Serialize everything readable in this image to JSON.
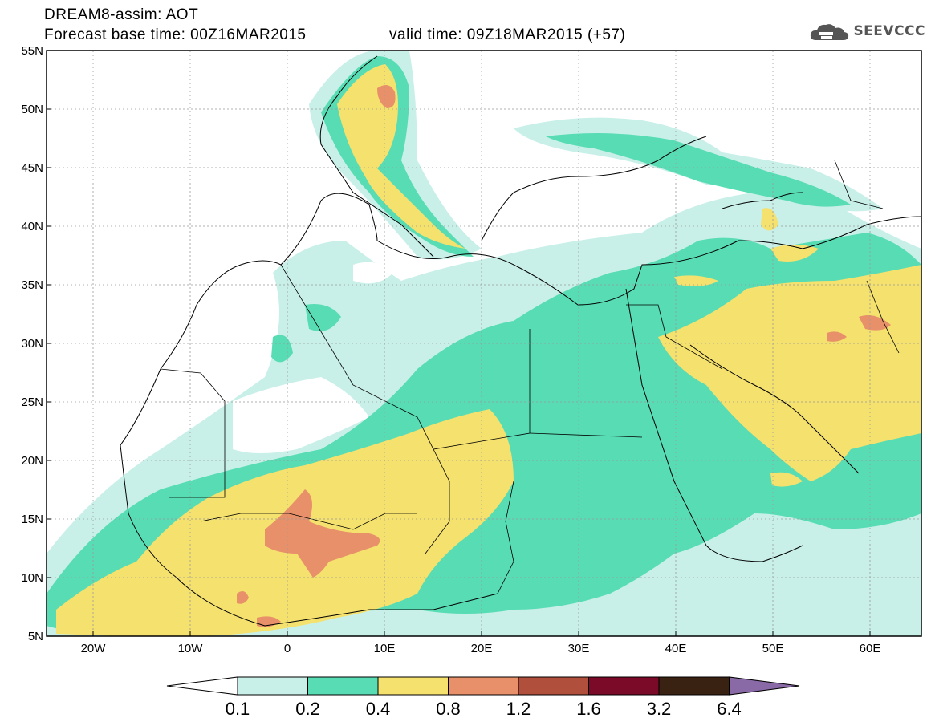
{
  "header": {
    "title_line1": "DREAM8-assim: AOT",
    "title_line2": "Forecast base time: 00Z16MAR2015",
    "valid_time": "valid time: 09Z18MAR2015 (+57)",
    "logo_text": "SEEVCCC"
  },
  "map": {
    "lat_labels": [
      "55N",
      "50N",
      "45N",
      "40N",
      "35N",
      "30N",
      "25N",
      "20N",
      "15N",
      "10N",
      "5N"
    ],
    "lon_labels": [
      "20W",
      "10W",
      "0",
      "10E",
      "20E",
      "30E",
      "40E",
      "50E",
      "60E"
    ],
    "lat_range": [
      5,
      55
    ],
    "lon_range": [
      -25,
      65
    ]
  },
  "colorbar": {
    "levels": [
      "0.1",
      "0.2",
      "0.4",
      "0.8",
      "1.2",
      "1.6",
      "3.2",
      "6.4"
    ],
    "colors": [
      "#c8f0e8",
      "#58dcb4",
      "#f5e16e",
      "#e7906a",
      "#b0503c",
      "#7a0a28",
      "#3a2212",
      "#8a6aa6"
    ],
    "under_color": "#ffffff"
  }
}
